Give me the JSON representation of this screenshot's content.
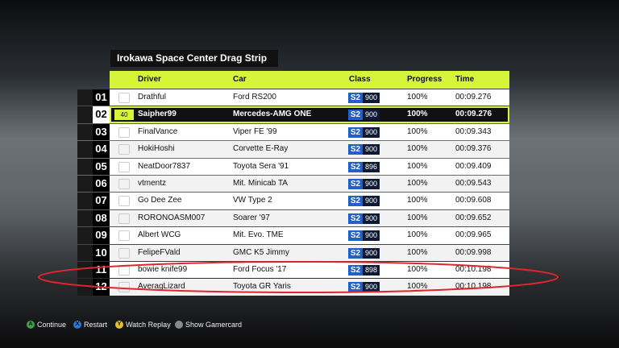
{
  "header": {
    "title": "Irokawa Space Center Drag Strip"
  },
  "table": {
    "columns": [
      "Driver",
      "Car",
      "Class",
      "Progress",
      "Time"
    ],
    "rows": [
      {
        "position": "01",
        "driver": "Drathful",
        "car": "Ford RS200",
        "class": "S2",
        "pi": "900",
        "progress": "100%",
        "time": "00:09.276"
      },
      {
        "position": "02",
        "level": "40",
        "driver": "Saipher99",
        "car": "Mercedes-AMG ONE",
        "class": "S2",
        "pi": "900",
        "progress": "100%",
        "time": "00:09.276"
      },
      {
        "position": "03",
        "driver": "FinalVance",
        "car": "Viper FE '99",
        "class": "S2",
        "pi": "900",
        "progress": "100%",
        "time": "00:09.343"
      },
      {
        "position": "04",
        "driver": "HokiHoshi",
        "car": "Corvette E-Ray",
        "class": "S2",
        "pi": "900",
        "progress": "100%",
        "time": "00:09.376"
      },
      {
        "position": "05",
        "driver": "NeatDoor7837",
        "car": "Toyota Sera '91",
        "class": "S2",
        "pi": "896",
        "progress": "100%",
        "time": "00:09.409"
      },
      {
        "position": "06",
        "driver": "vtmentz",
        "car": "Mit. Minicab TA",
        "class": "S2",
        "pi": "900",
        "progress": "100%",
        "time": "00:09.543"
      },
      {
        "position": "07",
        "driver": "Go Dee Zee",
        "car": "VW Type 2",
        "class": "S2",
        "pi": "900",
        "progress": "100%",
        "time": "00:09.608"
      },
      {
        "position": "08",
        "driver": "RORONOASM007",
        "car": "Soarer '97",
        "class": "S2",
        "pi": "900",
        "progress": "100%",
        "time": "00:09.652"
      },
      {
        "position": "09",
        "driver": "Albert WCG",
        "car": "Mit. Evo. TME",
        "class": "S2",
        "pi": "900",
        "progress": "100%",
        "time": "00:09.965"
      },
      {
        "position": "10",
        "driver": "FelipeFVald",
        "car": "GMC K5 Jimmy",
        "class": "S2",
        "pi": "900",
        "progress": "100%",
        "time": "00:09.998"
      },
      {
        "position": "11",
        "driver": "bowie knife99",
        "car": "Ford Focus '17",
        "class": "S2",
        "pi": "898",
        "progress": "100%",
        "time": "00:10.198"
      },
      {
        "position": "12",
        "driver": "AveragLizard",
        "car": "Toyota GR Yaris",
        "class": "S2",
        "pi": "900",
        "progress": "100%",
        "time": "00:10.198"
      }
    ]
  },
  "footer": {
    "buttons": [
      {
        "key": "A",
        "label": "Continue"
      },
      {
        "key": "X",
        "label": "Restart"
      },
      {
        "key": "Y",
        "label": "Watch Replay"
      },
      {
        "label": "Show Gamercard"
      }
    ]
  }
}
